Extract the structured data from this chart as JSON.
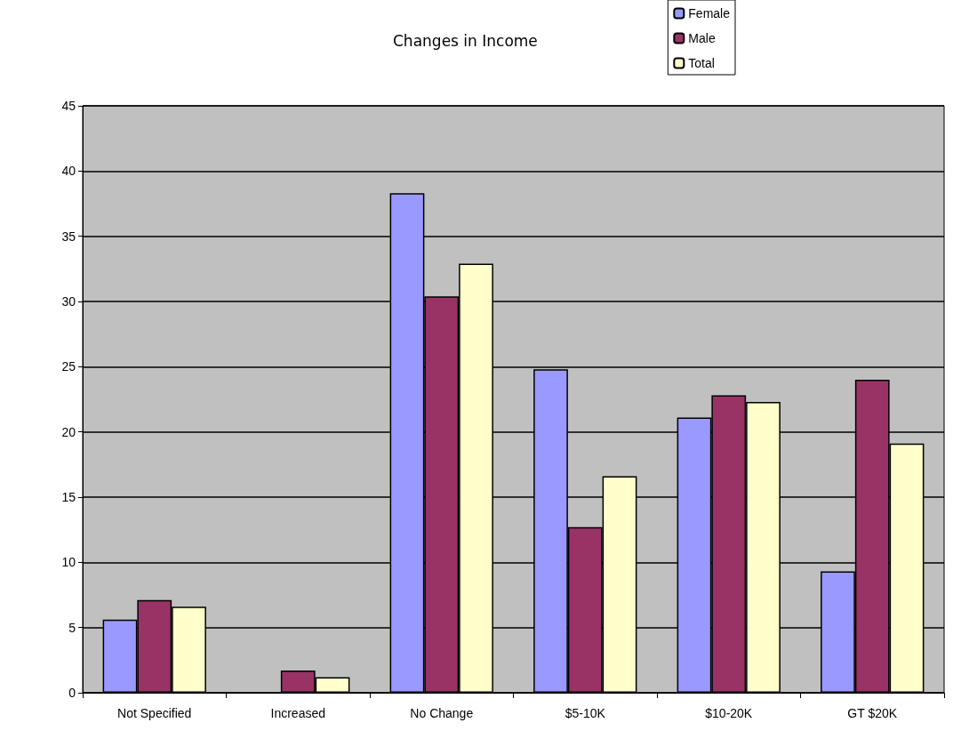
{
  "chart_data": {
    "type": "bar",
    "title": "Changes in Income",
    "categories": [
      "Not Specified",
      "Increased",
      "No Change",
      "$5-10K",
      "$10-20K",
      "GT $20K"
    ],
    "series": [
      {
        "name": "Female",
        "color": "#9999ff",
        "values": [
          5.6,
          null,
          38.3,
          24.8,
          21.1,
          9.3
        ]
      },
      {
        "name": "Male",
        "color": "#993366",
        "values": [
          7.1,
          1.7,
          30.4,
          12.7,
          22.8,
          24.0
        ]
      },
      {
        "name": "Total",
        "color": "#ffffcc",
        "values": [
          6.6,
          1.2,
          32.9,
          16.6,
          22.3,
          19.1
        ]
      }
    ],
    "ylim": [
      0,
      45
    ],
    "yticks": [
      0,
      5,
      10,
      15,
      20,
      25,
      30,
      35,
      40,
      45
    ],
    "grid": "y",
    "legend": "top right"
  }
}
